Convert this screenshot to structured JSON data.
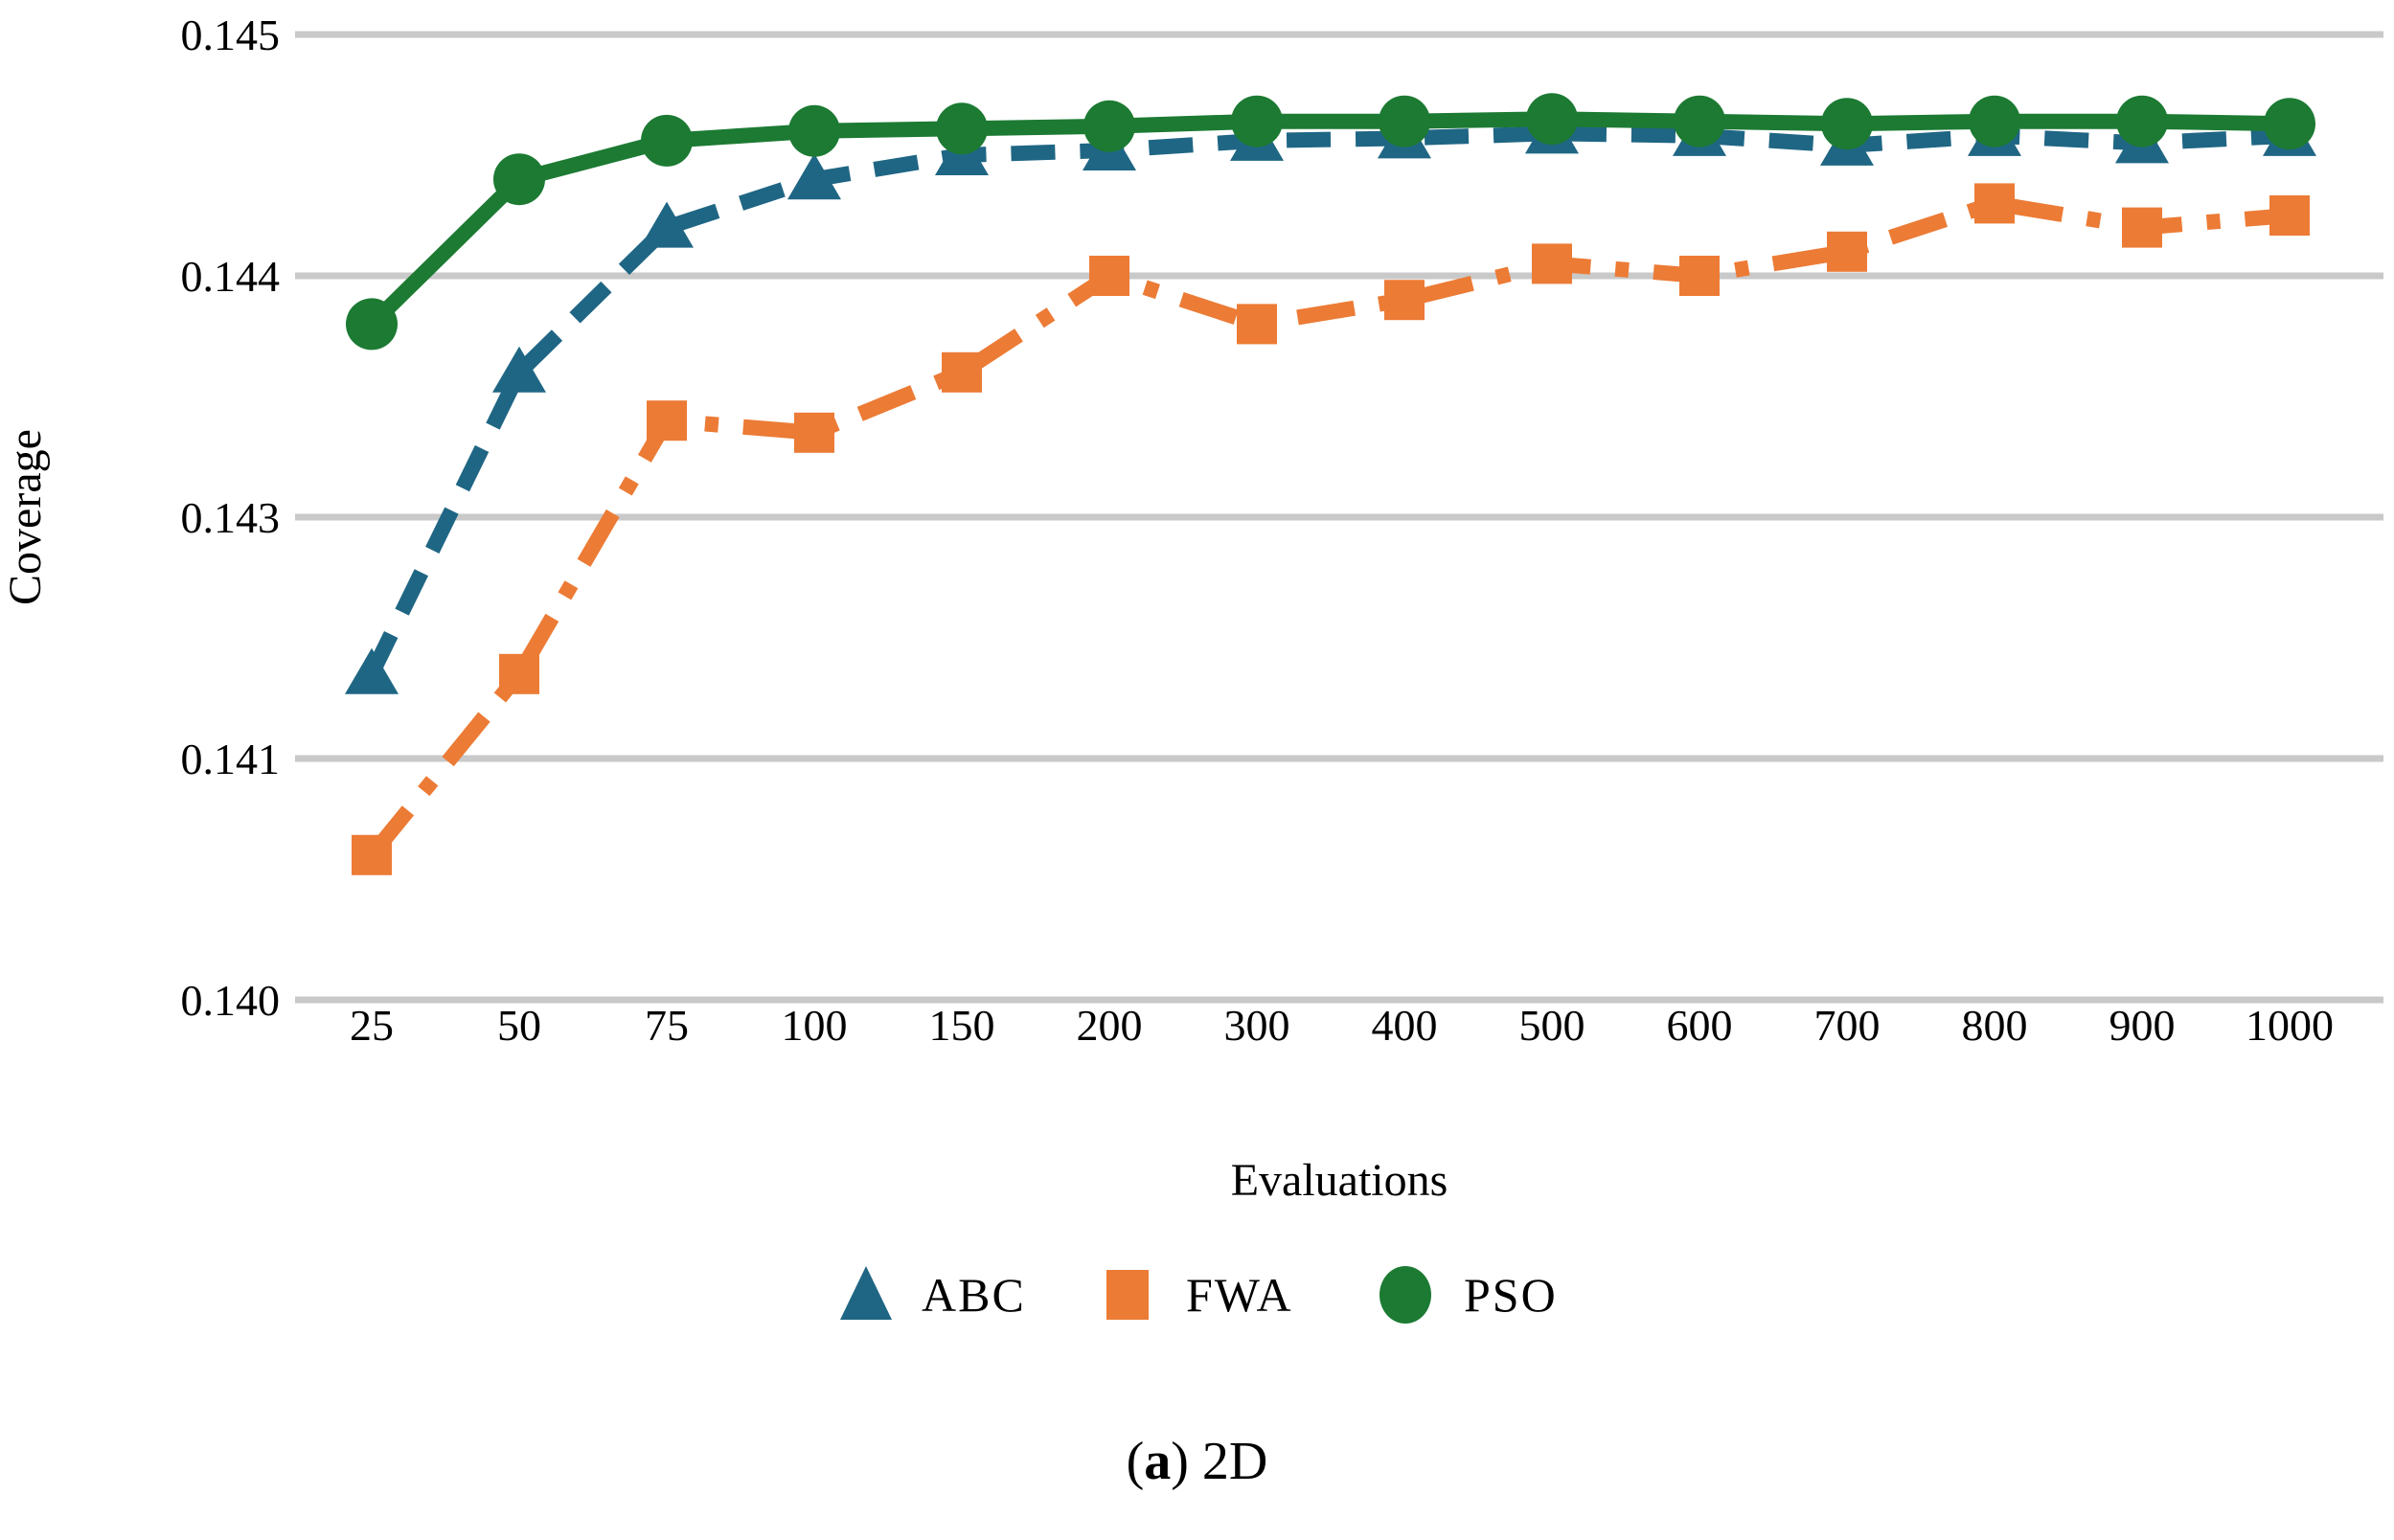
{
  "caption": {
    "open": "(",
    "bold": "a",
    "rest": ") 2D"
  },
  "chart_data": {
    "type": "line",
    "title": "",
    "xlabel": "Evaluations",
    "ylabel": "Coverage",
    "categories": [
      25,
      50,
      75,
      100,
      150,
      200,
      300,
      400,
      500,
      600,
      700,
      800,
      900,
      1000
    ],
    "y_tick_labels": [
      "0.145",
      "0.144",
      "0.143",
      "0.141",
      "0.140"
    ],
    "y_tick_values": [
      0.145,
      0.144,
      0.143,
      0.141,
      0.14
    ],
    "grid": true,
    "gridline_color": "#c9c9c9",
    "legend_position": "bottom",
    "series": [
      {
        "name": "ABC",
        "color": "#1f6684",
        "marker": "triangle",
        "line_style": "dashed",
        "values": [
          0.1417,
          0.1436,
          0.1442,
          0.1444,
          0.1445,
          0.14452,
          0.14456,
          0.14457,
          0.14459,
          0.14458,
          0.14454,
          0.14458,
          0.14455,
          0.14458
        ]
      },
      {
        "name": "FWA",
        "color": "#ec7b35",
        "marker": "square",
        "line_style": "dashdot",
        "values": [
          0.1406,
          0.1417,
          0.1434,
          0.14335,
          0.1436,
          0.144,
          0.1438,
          0.1439,
          0.14405,
          0.144,
          0.1441,
          0.1443,
          0.1442,
          0.14425
        ]
      },
      {
        "name": "PSO",
        "color": "#1c7a33",
        "marker": "circle",
        "line_style": "solid",
        "values": [
          0.1438,
          0.1444,
          0.14456,
          0.1446,
          0.14461,
          0.14462,
          0.14464,
          0.14464,
          0.14465,
          0.14464,
          0.14463,
          0.14464,
          0.14464,
          0.14463
        ]
      }
    ]
  }
}
